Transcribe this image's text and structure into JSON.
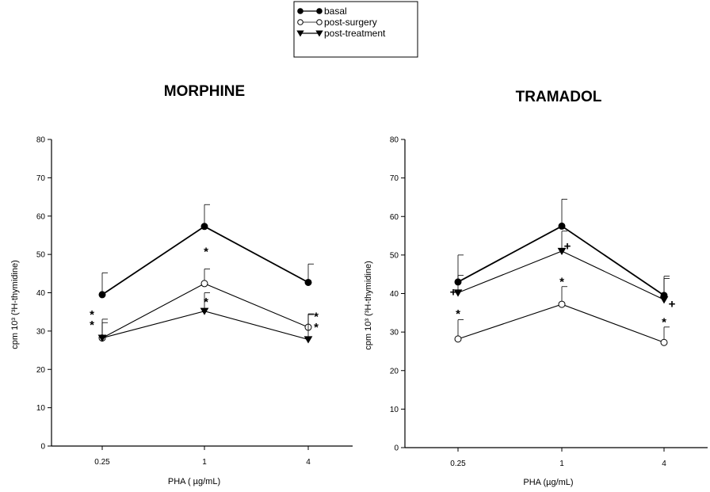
{
  "chart_data": [
    {
      "type": "line",
      "title": "MORPHINE",
      "xlabel": "PHA ( µg/mL)",
      "ylabel": "cpm 10³ (³H-thymidine)",
      "ylim": [
        0,
        80
      ],
      "yticks": [
        "0",
        "10",
        "20",
        "30",
        "40",
        "50",
        "60",
        "70",
        "80"
      ],
      "categories": [
        "0.25",
        "1",
        "4"
      ],
      "series": [
        {
          "name": "basal",
          "marker": "filled-circle",
          "values": [
            39.5,
            57.3,
            42.7
          ],
          "err": [
            5.7,
            5.7,
            4.8
          ]
        },
        {
          "name": "post-surgery",
          "marker": "open-circle",
          "values": [
            28.2,
            42.4,
            31.0
          ],
          "err": [
            4.9,
            3.8,
            3.5
          ]
        },
        {
          "name": "post-treatment",
          "marker": "filled-triangle",
          "values": [
            28.2,
            35.2,
            27.8
          ],
          "err": [
            4.0,
            4.8,
            6.5
          ]
        }
      ],
      "annotations": [
        {
          "text": "*",
          "x": "0.25",
          "y": 34.5
        },
        {
          "text": "*",
          "x": "0.25",
          "y": 31.8
        },
        {
          "text": "*",
          "x": "1",
          "y": 51.0
        },
        {
          "text": "*",
          "x": "1",
          "y": 37.8
        },
        {
          "text": "*",
          "x": "4",
          "y": 34.0
        },
        {
          "text": "*",
          "x": "4",
          "y": 31.2
        }
      ]
    },
    {
      "type": "line",
      "title": "TRAMADOL",
      "xlabel": "PHA (µg/mL)",
      "ylabel": "cpm 10³ (³H-thymidine)",
      "ylim": [
        0,
        80
      ],
      "yticks": [
        "0",
        "10",
        "20",
        "30",
        "40",
        "50",
        "60",
        "70",
        "80"
      ],
      "categories": [
        "0.25",
        "1",
        "4"
      ],
      "series": [
        {
          "name": "basal",
          "marker": "filled-circle",
          "values": [
            43.0,
            57.5,
            39.5
          ],
          "err": [
            7.0,
            7.0,
            5.0
          ]
        },
        {
          "name": "post-surgery",
          "marker": "open-circle",
          "values": [
            28.2,
            37.2,
            27.3
          ],
          "err": [
            5.0,
            4.6,
            4.0
          ]
        },
        {
          "name": "post-treatment",
          "marker": "filled-triangle",
          "values": [
            40.2,
            51.0,
            38.4
          ],
          "err": [
            4.5,
            5.2,
            5.5
          ]
        }
      ],
      "annotations": [
        {
          "text": "+",
          "x": "0.25",
          "y": 40.6
        },
        {
          "text": "*",
          "x": "0.25",
          "y": 35.0
        },
        {
          "text": "+",
          "x": "1",
          "y": 52.5
        },
        {
          "text": "*",
          "x": "1",
          "y": 43.3
        },
        {
          "text": "+",
          "x": "4",
          "y": 37.5
        },
        {
          "text": "*",
          "x": "4",
          "y": 32.8
        }
      ]
    }
  ],
  "legend": {
    "position": "top-center",
    "items": [
      {
        "label": "basal",
        "marker": "filled-circle"
      },
      {
        "label": "post-surgery",
        "marker": "open-circle"
      },
      {
        "label": "post-treatment",
        "marker": "filled-triangle"
      }
    ]
  }
}
